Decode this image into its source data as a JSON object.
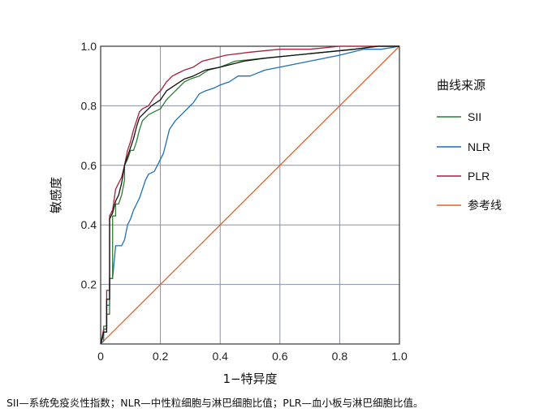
{
  "chart_data": {
    "type": "line",
    "xlabel": "1−特异度",
    "ylabel": "敏感度",
    "xlim": [
      0,
      1
    ],
    "ylim": [
      0,
      1
    ],
    "x_ticks": [
      "0",
      "0.2",
      "0.4",
      "0.6",
      "0.8",
      "1.0"
    ],
    "y_ticks": [
      "0.2",
      "0.4",
      "0.6",
      "0.8",
      "1.0"
    ],
    "grid": true,
    "legend_title": "曲线来源",
    "legend_position": "right",
    "series": [
      {
        "name": "SII",
        "color": "#2e7d32",
        "points": [
          [
            0,
            0
          ],
          [
            0.01,
            0.03
          ],
          [
            0.01,
            0.06
          ],
          [
            0.02,
            0.06
          ],
          [
            0.02,
            0.1
          ],
          [
            0.03,
            0.1
          ],
          [
            0.03,
            0.22
          ],
          [
            0.04,
            0.22
          ],
          [
            0.04,
            0.43
          ],
          [
            0.05,
            0.43
          ],
          [
            0.05,
            0.47
          ],
          [
            0.06,
            0.47
          ],
          [
            0.07,
            0.5
          ],
          [
            0.08,
            0.55
          ],
          [
            0.08,
            0.6
          ],
          [
            0.09,
            0.62
          ],
          [
            0.1,
            0.65
          ],
          [
            0.11,
            0.65
          ],
          [
            0.12,
            0.68
          ],
          [
            0.13,
            0.72
          ],
          [
            0.14,
            0.75
          ],
          [
            0.16,
            0.77
          ],
          [
            0.18,
            0.78
          ],
          [
            0.2,
            0.79
          ],
          [
            0.22,
            0.82
          ],
          [
            0.24,
            0.84
          ],
          [
            0.26,
            0.86
          ],
          [
            0.28,
            0.88
          ],
          [
            0.3,
            0.89
          ],
          [
            0.33,
            0.9
          ],
          [
            0.36,
            0.92
          ],
          [
            0.4,
            0.93
          ],
          [
            0.45,
            0.95
          ],
          [
            0.55,
            0.96
          ],
          [
            0.65,
            0.97
          ],
          [
            0.75,
            0.98
          ],
          [
            0.85,
            0.99
          ],
          [
            0.92,
            1.0
          ],
          [
            1.0,
            1.0
          ]
        ]
      },
      {
        "name": "NLR",
        "color": "#1f6fb2",
        "points": [
          [
            0,
            0
          ],
          [
            0.01,
            0.01
          ],
          [
            0.01,
            0.05
          ],
          [
            0.02,
            0.05
          ],
          [
            0.02,
            0.13
          ],
          [
            0.03,
            0.13
          ],
          [
            0.03,
            0.22
          ],
          [
            0.04,
            0.22
          ],
          [
            0.05,
            0.33
          ],
          [
            0.07,
            0.33
          ],
          [
            0.08,
            0.35
          ],
          [
            0.09,
            0.4
          ],
          [
            0.1,
            0.42
          ],
          [
            0.11,
            0.45
          ],
          [
            0.12,
            0.47
          ],
          [
            0.13,
            0.49
          ],
          [
            0.14,
            0.52
          ],
          [
            0.15,
            0.55
          ],
          [
            0.16,
            0.57
          ],
          [
            0.18,
            0.58
          ],
          [
            0.19,
            0.6
          ],
          [
            0.21,
            0.64
          ],
          [
            0.22,
            0.68
          ],
          [
            0.23,
            0.72
          ],
          [
            0.25,
            0.75
          ],
          [
            0.27,
            0.77
          ],
          [
            0.29,
            0.79
          ],
          [
            0.31,
            0.81
          ],
          [
            0.33,
            0.84
          ],
          [
            0.35,
            0.85
          ],
          [
            0.38,
            0.86
          ],
          [
            0.4,
            0.87
          ],
          [
            0.43,
            0.88
          ],
          [
            0.46,
            0.9
          ],
          [
            0.5,
            0.9
          ],
          [
            0.55,
            0.92
          ],
          [
            0.6,
            0.93
          ],
          [
            0.7,
            0.95
          ],
          [
            0.8,
            0.97
          ],
          [
            0.88,
            0.99
          ],
          [
            0.94,
            0.99
          ],
          [
            1.0,
            1.0
          ]
        ]
      },
      {
        "name": "PLR",
        "color": "#a5213a",
        "points": [
          [
            0,
            0
          ],
          [
            0.01,
            0.05
          ],
          [
            0.02,
            0.05
          ],
          [
            0.02,
            0.18
          ],
          [
            0.03,
            0.18
          ],
          [
            0.03,
            0.43
          ],
          [
            0.04,
            0.45
          ],
          [
            0.05,
            0.52
          ],
          [
            0.06,
            0.54
          ],
          [
            0.07,
            0.56
          ],
          [
            0.08,
            0.6
          ],
          [
            0.09,
            0.65
          ],
          [
            0.1,
            0.68
          ],
          [
            0.11,
            0.72
          ],
          [
            0.12,
            0.75
          ],
          [
            0.13,
            0.78
          ],
          [
            0.14,
            0.79
          ],
          [
            0.16,
            0.8
          ],
          [
            0.18,
            0.83
          ],
          [
            0.2,
            0.85
          ],
          [
            0.22,
            0.88
          ],
          [
            0.24,
            0.9
          ],
          [
            0.26,
            0.91
          ],
          [
            0.28,
            0.92
          ],
          [
            0.31,
            0.93
          ],
          [
            0.34,
            0.95
          ],
          [
            0.38,
            0.96
          ],
          [
            0.42,
            0.97
          ],
          [
            0.5,
            0.98
          ],
          [
            0.6,
            0.99
          ],
          [
            0.7,
            0.99
          ],
          [
            0.8,
            1.0
          ],
          [
            1.0,
            1.0
          ]
        ]
      },
      {
        "name": "参考线",
        "color": "#e0662a",
        "points": [
          [
            0,
            0
          ],
          [
            1,
            1
          ]
        ]
      }
    ],
    "extra_black_series": {
      "color": "#111111",
      "points": [
        [
          0,
          0
        ],
        [
          0.01,
          0.04
        ],
        [
          0.02,
          0.04
        ],
        [
          0.02,
          0.15
        ],
        [
          0.03,
          0.15
        ],
        [
          0.03,
          0.42
        ],
        [
          0.04,
          0.44
        ],
        [
          0.05,
          0.48
        ],
        [
          0.06,
          0.5
        ],
        [
          0.07,
          0.54
        ],
        [
          0.08,
          0.6
        ],
        [
          0.09,
          0.63
        ],
        [
          0.1,
          0.66
        ],
        [
          0.11,
          0.69
        ],
        [
          0.12,
          0.73
        ],
        [
          0.13,
          0.76
        ],
        [
          0.15,
          0.78
        ],
        [
          0.17,
          0.8
        ],
        [
          0.2,
          0.82
        ],
        [
          0.22,
          0.85
        ],
        [
          0.25,
          0.87
        ],
        [
          0.28,
          0.89
        ],
        [
          0.31,
          0.9
        ],
        [
          0.35,
          0.92
        ],
        [
          0.4,
          0.93
        ],
        [
          0.48,
          0.95
        ],
        [
          0.55,
          0.96
        ],
        [
          0.65,
          0.97
        ],
        [
          0.75,
          0.98
        ],
        [
          0.85,
          0.99
        ],
        [
          0.93,
          1.0
        ],
        [
          1.0,
          1.0
        ]
      ]
    }
  },
  "caption": "SII—系统免疫炎性指数；NLR—中性粒细胞与淋巴细胞比值；PLR—血小板与淋巴细胞比值。"
}
